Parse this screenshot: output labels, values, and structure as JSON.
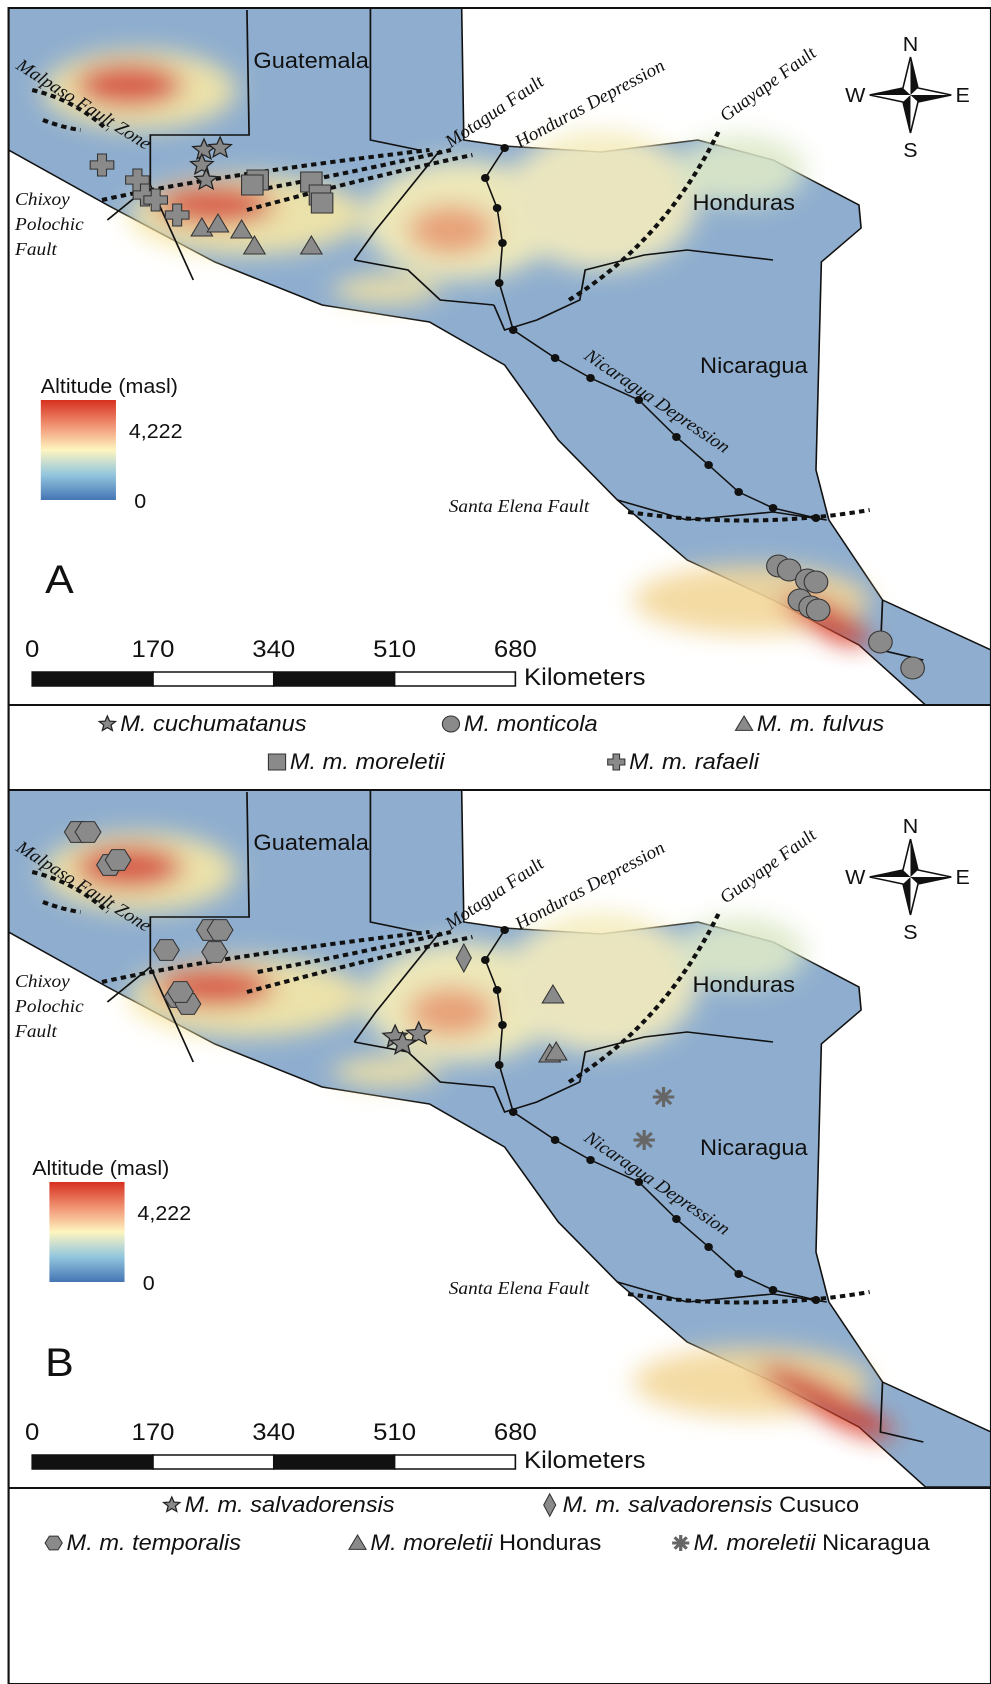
{
  "panels": [
    {
      "letter": "A",
      "countries": [
        "Guatemala",
        "Honduras",
        "Nicaragua"
      ],
      "faults": {
        "malpaso": "Malpaso Fault Zone",
        "chixoy": [
          "Chixoy",
          "Polochic",
          "Fault"
        ],
        "motagua": "Motagua Fault",
        "honduras_depression": "Honduras Depression",
        "guayape": "Guayape Fault",
        "nicaragua_depression": "Nicaragua Depression",
        "santa_elena": "Santa Elena Fault"
      },
      "compass": {
        "n": "N",
        "s": "S",
        "w": "W",
        "e": "E"
      },
      "altitude": {
        "title": "Altitude (masl)",
        "max": "4,222",
        "min": "0"
      },
      "scale": {
        "ticks": [
          0,
          170,
          340,
          510,
          680
        ],
        "unit": "Kilometers"
      },
      "legend": [
        {
          "name": "M. cuchumatanus"
        },
        {
          "name": "M. monticola"
        },
        {
          "name": "M. m. fulvus"
        },
        {
          "name": "M. m. moreletii"
        },
        {
          "name": "M. m. rafaeli"
        }
      ]
    },
    {
      "letter": "B",
      "countries": [
        "Guatemala",
        "Honduras",
        "Nicaragua"
      ],
      "faults": {
        "malpaso": "Malpaso Fault Zone",
        "chixoy": [
          "Chixoy",
          "Polochic",
          "Fault"
        ],
        "motagua": "Motagua Fault",
        "honduras_depression": "Honduras Depression",
        "guayape": "Guayape Fault",
        "nicaragua_depression": "Nicaragua Depression",
        "santa_elena": "Santa Elena Fault"
      },
      "compass": {
        "n": "N",
        "s": "S",
        "w": "W",
        "e": "E"
      },
      "altitude": {
        "title": "Altitude (masl)",
        "max": "4,222",
        "min": "0"
      },
      "scale": {
        "ticks": [
          0,
          170,
          340,
          510,
          680
        ],
        "unit": "Kilometers"
      },
      "legend": [
        {
          "name": "M. m. salvadorensis"
        },
        {
          "name": "M. m. salvadorensis",
          "suffix": "Cusuco"
        },
        {
          "name": "M. m. temporalis"
        },
        {
          "name": "M. moreletii",
          "suffix": "Honduras"
        },
        {
          "name": "M. moreletii",
          "suffix": "Nicaragua"
        }
      ]
    }
  ]
}
